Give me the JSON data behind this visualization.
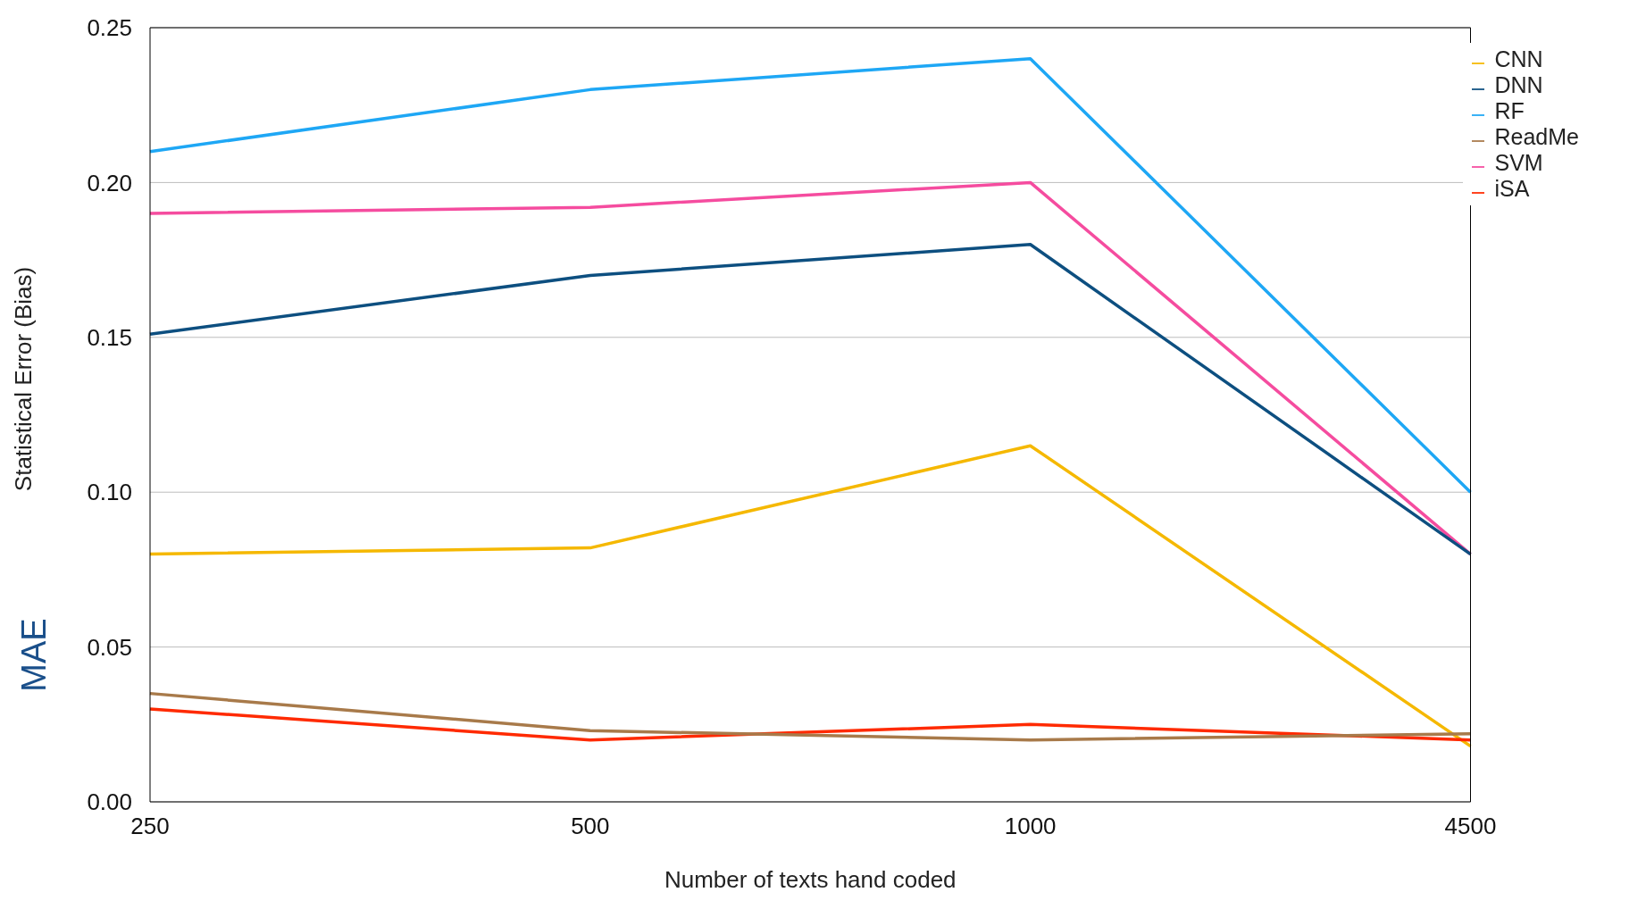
{
  "chart_data": {
    "type": "line",
    "xlabel": "Number of texts hand coded",
    "ylabel": "Statistical Error (Bias)",
    "annotations": [
      "MAE"
    ],
    "categories": [
      "250",
      "500",
      "1000",
      "4500"
    ],
    "series": [
      {
        "name": "RF",
        "color": "#1ea7f5",
        "values": [
          0.21,
          0.23,
          0.24,
          0.1
        ]
      },
      {
        "name": "SVM",
        "color": "#f54c9f",
        "values": [
          0.19,
          0.192,
          0.2,
          0.08
        ]
      },
      {
        "name": "DNN",
        "color": "#0d4f80",
        "values": [
          0.151,
          0.17,
          0.18,
          0.08
        ]
      },
      {
        "name": "CNN",
        "color": "#f5b800",
        "values": [
          0.08,
          0.082,
          0.115,
          0.018
        ]
      },
      {
        "name": "iSA",
        "color": "#ff2a00",
        "values": [
          0.03,
          0.02,
          0.025,
          0.02
        ]
      },
      {
        "name": "ReadMe",
        "color": "#a87a4a",
        "values": [
          0.035,
          0.023,
          0.02,
          0.022
        ]
      }
    ],
    "ylim": [
      0,
      0.25
    ],
    "yticks": [
      {
        "value": 0,
        "label": "0.00"
      },
      {
        "value": 0.05,
        "label": "0.05"
      },
      {
        "value": 0.1,
        "label": "0.10"
      },
      {
        "value": 0.15,
        "label": "0.15"
      },
      {
        "value": 0.2,
        "label": "0.20"
      },
      {
        "value": 0.25,
        "label": "0.25"
      }
    ],
    "grid": "y",
    "legend": "top right",
    "marker": "none",
    "line_style": "solid"
  }
}
